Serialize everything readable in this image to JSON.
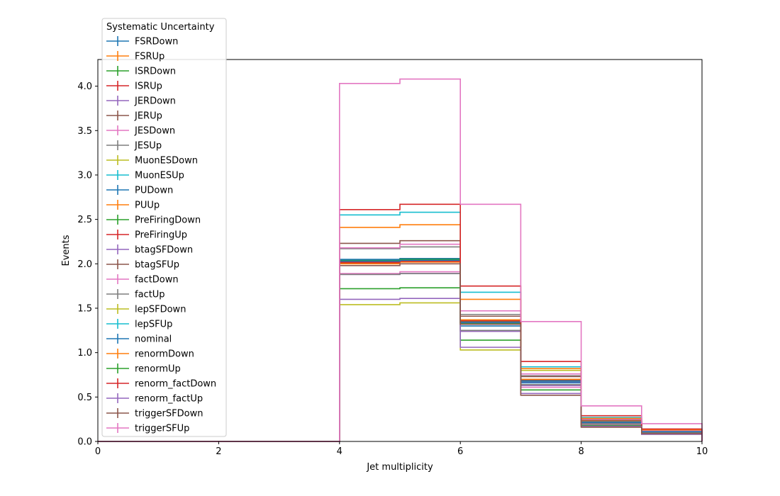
{
  "chart_data": {
    "type": "step-histogram",
    "xlabel": "Jet multiplicity",
    "ylabel": "Events",
    "xlim": [
      0,
      10
    ],
    "ylim": [
      0,
      4.3
    ],
    "x_ticks": [
      "0",
      "2",
      "4",
      "6",
      "8",
      "10"
    ],
    "y_ticks": [
      "0.0",
      "0.5",
      "1.0",
      "1.5",
      "2.0",
      "2.5",
      "3.0",
      "3.5",
      "4.0"
    ],
    "grid": false,
    "legend_title": "Systematic Uncertainty",
    "legend_position": "upper-left",
    "bin_edges": [
      0,
      1,
      2,
      3,
      4,
      5,
      6,
      7,
      8,
      9,
      10
    ],
    "series": [
      {
        "name": "FSRDown",
        "color": "#1f77b4",
        "values": [
          0,
          0,
          0,
          0,
          2.03,
          2.04,
          1.34,
          0.68,
          0.22,
          0.11
        ]
      },
      {
        "name": "FSRUp",
        "color": "#ff7f0e",
        "values": [
          0,
          0,
          0,
          0,
          2.02,
          2.03,
          1.35,
          0.69,
          0.23,
          0.12
        ]
      },
      {
        "name": "ISRDown",
        "color": "#2ca02c",
        "values": [
          0,
          0,
          0,
          0,
          2.04,
          2.05,
          1.33,
          0.67,
          0.21,
          0.11
        ]
      },
      {
        "name": "ISRUp",
        "color": "#d62728",
        "values": [
          0,
          0,
          0,
          0,
          2.01,
          2.02,
          1.36,
          0.7,
          0.23,
          0.12
        ]
      },
      {
        "name": "JERDown",
        "color": "#9467bd",
        "values": [
          0,
          0,
          0,
          0,
          2.03,
          2.04,
          1.32,
          0.67,
          0.21,
          0.1
        ]
      },
      {
        "name": "JERUp",
        "color": "#8c564b",
        "values": [
          0,
          0,
          0,
          0,
          2.02,
          2.03,
          1.35,
          0.69,
          0.22,
          0.11
        ]
      },
      {
        "name": "JESDown",
        "color": "#e377c2",
        "values": [
          0,
          0,
          0,
          0,
          1.89,
          1.91,
          1.24,
          0.61,
          0.19,
          0.09
        ]
      },
      {
        "name": "JESUp",
        "color": "#7f7f7f",
        "values": [
          0,
          0,
          0,
          0,
          2.17,
          2.19,
          1.43,
          0.74,
          0.24,
          0.12
        ]
      },
      {
        "name": "MuonESDown",
        "color": "#bcbd22",
        "values": [
          0,
          0,
          0,
          0,
          2.02,
          2.03,
          1.34,
          0.68,
          0.22,
          0.11
        ]
      },
      {
        "name": "MuonESUp",
        "color": "#17becf",
        "values": [
          0,
          0,
          0,
          0,
          2.03,
          2.04,
          1.34,
          0.68,
          0.22,
          0.11
        ]
      },
      {
        "name": "PUDown",
        "color": "#1f77b4",
        "values": [
          0,
          0,
          0,
          0,
          2.05,
          2.06,
          1.3,
          0.66,
          0.21,
          0.1
        ]
      },
      {
        "name": "PUUp",
        "color": "#ff7f0e",
        "values": [
          0,
          0,
          0,
          0,
          2.0,
          2.02,
          1.37,
          0.7,
          0.23,
          0.12
        ]
      },
      {
        "name": "PreFiringDown",
        "color": "#2ca02c",
        "values": [
          0,
          0,
          0,
          0,
          2.03,
          2.05,
          1.34,
          0.68,
          0.22,
          0.11
        ]
      },
      {
        "name": "PreFiringUp",
        "color": "#d62728",
        "values": [
          0,
          0,
          0,
          0,
          2.02,
          2.03,
          1.34,
          0.68,
          0.22,
          0.11
        ]
      },
      {
        "name": "btagSFDown",
        "color": "#9467bd",
        "values": [
          0,
          0,
          0,
          0,
          1.88,
          1.89,
          1.24,
          0.63,
          0.2,
          0.1
        ]
      },
      {
        "name": "btagSFUp",
        "color": "#8c564b",
        "values": [
          0,
          0,
          0,
          0,
          2.23,
          2.26,
          1.41,
          0.73,
          0.24,
          0.12
        ]
      },
      {
        "name": "factDown",
        "color": "#e377c2",
        "values": [
          0,
          0,
          0,
          0,
          2.18,
          2.22,
          1.47,
          0.76,
          0.25,
          0.12
        ]
      },
      {
        "name": "factUp",
        "color": "#7f7f7f",
        "values": [
          0,
          0,
          0,
          0,
          1.88,
          1.89,
          1.25,
          0.64,
          0.2,
          0.1
        ]
      },
      {
        "name": "lepSFDown",
        "color": "#bcbd22",
        "values": [
          0,
          0,
          0,
          0,
          1.54,
          1.56,
          1.03,
          0.8,
          0.17,
          0.08
        ]
      },
      {
        "name": "lepSFUp",
        "color": "#17becf",
        "values": [
          0,
          0,
          0,
          0,
          2.55,
          2.58,
          1.68,
          0.84,
          0.27,
          0.13
        ]
      },
      {
        "name": "nominal",
        "color": "#1f77b4",
        "values": [
          0,
          0,
          0,
          0,
          2.03,
          2.04,
          1.34,
          0.68,
          0.22,
          0.11
        ]
      },
      {
        "name": "renormDown",
        "color": "#ff7f0e",
        "values": [
          0,
          0,
          0,
          0,
          2.41,
          2.44,
          1.6,
          0.82,
          0.26,
          0.13
        ]
      },
      {
        "name": "renormUp",
        "color": "#2ca02c",
        "values": [
          0,
          0,
          0,
          0,
          1.72,
          1.73,
          1.14,
          0.58,
          0.18,
          0.09
        ]
      },
      {
        "name": "renorm_factDown",
        "color": "#d62728",
        "values": [
          0,
          0,
          0,
          0,
          2.61,
          2.67,
          1.75,
          0.9,
          0.29,
          0.14
        ]
      },
      {
        "name": "renorm_factUp",
        "color": "#9467bd",
        "values": [
          0,
          0,
          0,
          0,
          1.6,
          1.61,
          1.06,
          0.54,
          0.17,
          0.08
        ]
      },
      {
        "name": "triggerSFDown",
        "color": "#8c564b",
        "values": [
          0,
          0,
          0,
          0,
          1.98,
          2.0,
          1.32,
          0.52,
          0.16,
          0.09
        ]
      },
      {
        "name": "triggerSFUp",
        "color": "#e377c2",
        "values": [
          0,
          0,
          0,
          0,
          4.03,
          4.08,
          2.67,
          1.35,
          0.4,
          0.2
        ]
      }
    ]
  }
}
